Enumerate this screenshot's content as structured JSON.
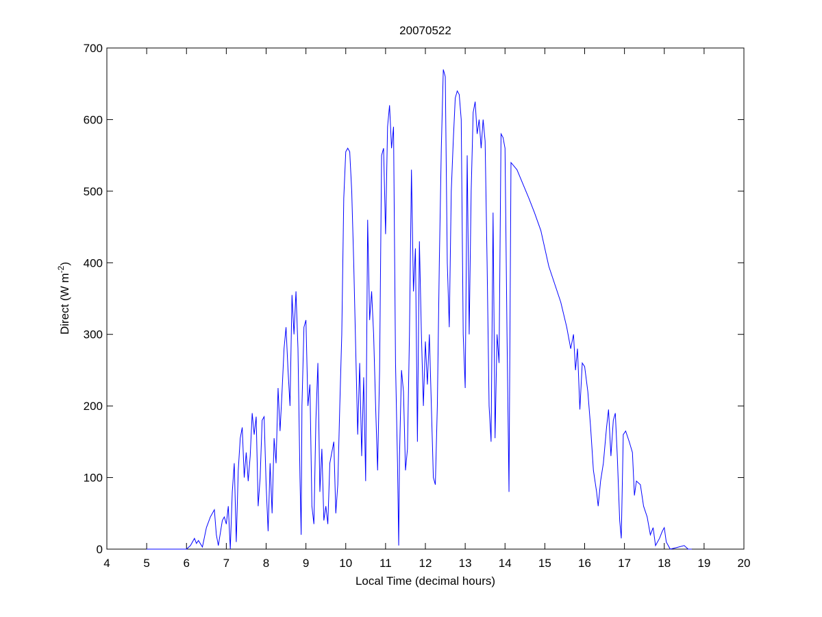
{
  "chart_data": {
    "type": "line",
    "title": "20070522",
    "xlabel": "Local Time (decimal hours)",
    "ylabel": {
      "text": "Direct (W m",
      "superscript": "-2",
      "end": ")"
    },
    "x": [
      5,
      6.0,
      6.1,
      6.2,
      6.25,
      6.3,
      6.4,
      6.5,
      6.6,
      6.7,
      6.75,
      6.8,
      6.9,
      6.95,
      7.0,
      7.05,
      7.1,
      7.15,
      7.2,
      7.25,
      7.3,
      7.35,
      7.4,
      7.45,
      7.5,
      7.55,
      7.6,
      7.65,
      7.7,
      7.75,
      7.8,
      7.85,
      7.9,
      7.95,
      8.0,
      8.05,
      8.1,
      8.15,
      8.2,
      8.25,
      8.3,
      8.35,
      8.4,
      8.45,
      8.5,
      8.55,
      8.6,
      8.65,
      8.7,
      8.75,
      8.8,
      8.85,
      8.88,
      8.9,
      8.95,
      9.0,
      9.05,
      9.1,
      9.15,
      9.2,
      9.25,
      9.3,
      9.35,
      9.4,
      9.45,
      9.5,
      9.55,
      9.6,
      9.65,
      9.7,
      9.75,
      9.8,
      9.85,
      9.9,
      9.95,
      10.0,
      10.05,
      10.1,
      10.15,
      10.2,
      10.25,
      10.3,
      10.35,
      10.4,
      10.45,
      10.5,
      10.55,
      10.6,
      10.65,
      10.7,
      10.75,
      10.8,
      10.85,
      10.9,
      10.95,
      11.0,
      11.05,
      11.1,
      11.15,
      11.2,
      11.25,
      11.3,
      11.33,
      11.35,
      11.4,
      11.45,
      11.5,
      11.55,
      11.6,
      11.65,
      11.7,
      11.75,
      11.8,
      11.85,
      11.9,
      11.95,
      12.0,
      12.05,
      12.1,
      12.15,
      12.2,
      12.25,
      12.3,
      12.35,
      12.4,
      12.45,
      12.5,
      12.55,
      12.6,
      12.65,
      12.7,
      12.75,
      12.8,
      12.85,
      12.9,
      12.95,
      13.0,
      13.05,
      13.1,
      13.15,
      13.2,
      13.25,
      13.3,
      13.35,
      13.4,
      13.45,
      13.5,
      13.55,
      13.6,
      13.65,
      13.7,
      13.75,
      13.8,
      13.85,
      13.9,
      13.95,
      14.0,
      14.05,
      14.1,
      14.15,
      14.3,
      14.45,
      14.6,
      14.74,
      14.9,
      15.0,
      15.1,
      15.25,
      15.4,
      15.55,
      15.65,
      15.72,
      15.77,
      15.82,
      15.88,
      15.94,
      16.0,
      16.08,
      16.15,
      16.22,
      16.3,
      16.34,
      16.4,
      16.47,
      16.55,
      16.6,
      16.66,
      16.72,
      16.77,
      16.82,
      16.88,
      16.92,
      16.97,
      17.03,
      17.12,
      17.2,
      17.25,
      17.3,
      17.4,
      17.48,
      17.57,
      17.65,
      17.72,
      17.78,
      17.88,
      17.95,
      18.0,
      18.05,
      18.15,
      18.3,
      18.5,
      18.6,
      18.69
    ],
    "series": [
      {
        "color": "#0000ff",
        "values": [
          0,
          0,
          5,
          15,
          8,
          12,
          3,
          30,
          45,
          55,
          20,
          5,
          40,
          45,
          35,
          60,
          0,
          80,
          120,
          10,
          110,
          155,
          170,
          100,
          135,
          95,
          130,
          190,
          160,
          185,
          60,
          100,
          180,
          185,
          90,
          25,
          120,
          50,
          155,
          120,
          225,
          165,
          220,
          280,
          310,
          250,
          200,
          355,
          300,
          360,
          280,
          100,
          20,
          200,
          310,
          320,
          200,
          230,
          60,
          35,
          180,
          260,
          80,
          140,
          40,
          60,
          35,
          120,
          135,
          150,
          50,
          90,
          200,
          300,
          490,
          555,
          560,
          555,
          500,
          400,
          280,
          160,
          260,
          130,
          240,
          95,
          460,
          320,
          360,
          300,
          200,
          110,
          250,
          550,
          560,
          440,
          590,
          620,
          560,
          590,
          260,
          120,
          5,
          130,
          250,
          220,
          110,
          140,
          300,
          530,
          360,
          420,
          150,
          430,
          300,
          200,
          290,
          230,
          300,
          200,
          100,
          90,
          200,
          400,
          560,
          670,
          660,
          400,
          310,
          500,
          570,
          630,
          640,
          635,
          600,
          300,
          225,
          550,
          300,
          500,
          610,
          625,
          580,
          600,
          560,
          600,
          570,
          400,
          200,
          150,
          470,
          155,
          300,
          260,
          580,
          575,
          560,
          300,
          80,
          540,
          530,
          510,
          490,
          470,
          445,
          420,
          395,
          370,
          345,
          310,
          280,
          300,
          250,
          280,
          195,
          260,
          255,
          220,
          170,
          110,
          80,
          60,
          95,
          120,
          170,
          195,
          130,
          180,
          190,
          130,
          40,
          15,
          160,
          165,
          150,
          135,
          75,
          95,
          90,
          60,
          45,
          20,
          30,
          5,
          15,
          25,
          30,
          10,
          0,
          2,
          5,
          0,
          0
        ]
      }
    ],
    "xlim": [
      4,
      20
    ],
    "xticks": [
      4,
      5,
      6,
      7,
      8,
      9,
      10,
      11,
      12,
      13,
      14,
      15,
      16,
      17,
      18,
      19,
      20
    ],
    "ylim": [
      0,
      700
    ],
    "yticks": [
      0,
      100,
      200,
      300,
      400,
      500,
      600,
      700
    ]
  }
}
